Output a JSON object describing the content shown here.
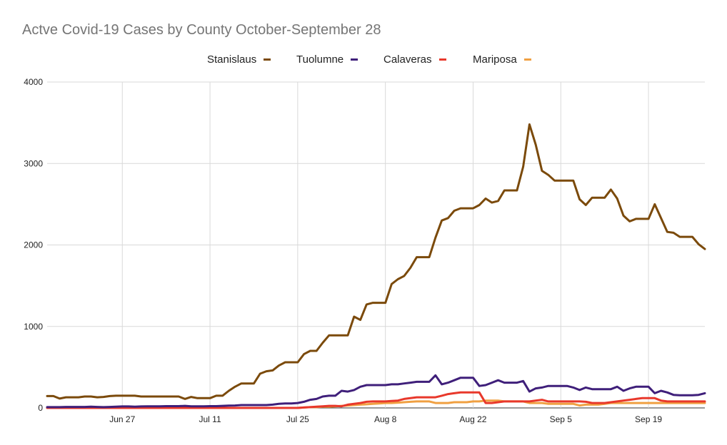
{
  "chart_data": {
    "type": "line",
    "title": "Actve Covid-19 Cases by County October-September 28",
    "xlabel": "",
    "ylabel": "",
    "ylim": [
      0,
      4000
    ],
    "y_ticks": [
      "0",
      "1000",
      "2000",
      "3000",
      "4000"
    ],
    "x_tick_labels": [
      "Jun 27",
      "Jul 11",
      "Jul 25",
      "Aug 8",
      "Aug 22",
      "Sep 5",
      "Sep 19"
    ],
    "x_tick_index": [
      12,
      26,
      40,
      54,
      68,
      82,
      96
    ],
    "x": [
      "Jun 15",
      "Jun 16",
      "Jun 17",
      "Jun 18",
      "Jun 19",
      "Jun 20",
      "Jun 21",
      "Jun 22",
      "Jun 23",
      "Jun 24",
      "Jun 25",
      "Jun 26",
      "Jun 27",
      "Jun 28",
      "Jun 29",
      "Jun 30",
      "Jul 1",
      "Jul 2",
      "Jul 3",
      "Jul 4",
      "Jul 5",
      "Jul 6",
      "Jul 7",
      "Jul 8",
      "Jul 9",
      "Jul 10",
      "Jul 11",
      "Jul 12",
      "Jul 13",
      "Jul 14",
      "Jul 15",
      "Jul 16",
      "Jul 17",
      "Jul 18",
      "Jul 19",
      "Jul 20",
      "Jul 21",
      "Jul 22",
      "Jul 23",
      "Jul 24",
      "Jul 25",
      "Jul 26",
      "Jul 27",
      "Jul 28",
      "Jul 29",
      "Jul 30",
      "Jul 31",
      "Aug 1",
      "Aug 2",
      "Aug 3",
      "Aug 4",
      "Aug 5",
      "Aug 6",
      "Aug 7",
      "Aug 8",
      "Aug 9",
      "Aug 10",
      "Aug 11",
      "Aug 12",
      "Aug 13",
      "Aug 14",
      "Aug 15",
      "Aug 16",
      "Aug 17",
      "Aug 18",
      "Aug 19",
      "Aug 20",
      "Aug 21",
      "Aug 22",
      "Aug 23",
      "Aug 24",
      "Aug 25",
      "Aug 26",
      "Aug 27",
      "Aug 28",
      "Aug 29",
      "Aug 30",
      "Aug 31",
      "Sep 1",
      "Sep 2",
      "Sep 3",
      "Sep 4",
      "Sep 5",
      "Sep 6",
      "Sep 7",
      "Sep 8",
      "Sep 9",
      "Sep 10",
      "Sep 11",
      "Sep 12",
      "Sep 13",
      "Sep 14",
      "Sep 15",
      "Sep 16",
      "Sep 17",
      "Sep 18",
      "Sep 19",
      "Sep 20",
      "Sep 21",
      "Sep 22",
      "Sep 23",
      "Sep 24",
      "Sep 25",
      "Sep 26",
      "Sep 27",
      "Sep 28"
    ],
    "legend_position": "top",
    "grid": true,
    "series": [
      {
        "name": "Stanislaus",
        "color": "#7b4a0b",
        "values": [
          145,
          145,
          115,
          130,
          130,
          130,
          140,
          140,
          130,
          135,
          145,
          150,
          150,
          150,
          150,
          140,
          140,
          140,
          140,
          140,
          140,
          140,
          110,
          135,
          120,
          120,
          120,
          150,
          150,
          210,
          260,
          300,
          300,
          300,
          420,
          450,
          460,
          520,
          560,
          560,
          560,
          660,
          700,
          700,
          800,
          890,
          890,
          890,
          890,
          1120,
          1080,
          1270,
          1290,
          1290,
          1290,
          1520,
          1580,
          1620,
          1720,
          1850,
          1850,
          1850,
          2090,
          2300,
          2330,
          2420,
          2450,
          2450,
          2450,
          2490,
          2570,
          2520,
          2540,
          2670,
          2670,
          2670,
          2960,
          3480,
          3230,
          2910,
          2860,
          2790,
          2790,
          2790,
          2790,
          2560,
          2490,
          2580,
          2580,
          2580,
          2680,
          2570,
          2360,
          2290,
          2320,
          2320,
          2320,
          2500,
          2330,
          2160,
          2150,
          2100,
          2100,
          2100,
          2010,
          1950
        ]
      },
      {
        "name": "Tuolumne",
        "color": "#3f1f7a",
        "values": [
          10,
          10,
          10,
          12,
          12,
          12,
          12,
          15,
          12,
          10,
          12,
          15,
          18,
          18,
          15,
          18,
          20,
          20,
          20,
          22,
          22,
          22,
          25,
          20,
          20,
          20,
          22,
          22,
          25,
          28,
          30,
          35,
          35,
          35,
          35,
          35,
          40,
          50,
          55,
          55,
          60,
          75,
          100,
          110,
          140,
          150,
          150,
          210,
          200,
          220,
          260,
          280,
          280,
          280,
          280,
          290,
          290,
          300,
          310,
          320,
          320,
          320,
          400,
          290,
          310,
          340,
          370,
          370,
          370,
          270,
          280,
          310,
          340,
          310,
          310,
          310,
          330,
          200,
          240,
          250,
          270,
          270,
          270,
          270,
          250,
          220,
          250,
          230,
          230,
          230,
          230,
          260,
          210,
          240,
          260,
          260,
          260,
          180,
          210,
          190,
          160,
          155,
          155,
          155,
          160,
          180
        ]
      },
      {
        "name": "Calaveras",
        "color": "#e8382b",
        "values": [
          0,
          0,
          0,
          0,
          0,
          0,
          0,
          0,
          0,
          0,
          0,
          0,
          0,
          0,
          0,
          0,
          0,
          0,
          0,
          0,
          0,
          0,
          0,
          0,
          0,
          0,
          0,
          0,
          0,
          0,
          0,
          0,
          0,
          0,
          0,
          0,
          0,
          0,
          0,
          0,
          0,
          5,
          10,
          15,
          20,
          25,
          25,
          20,
          40,
          50,
          60,
          75,
          80,
          80,
          80,
          85,
          90,
          110,
          120,
          130,
          130,
          130,
          130,
          150,
          170,
          180,
          190,
          190,
          190,
          190,
          60,
          60,
          70,
          80,
          80,
          80,
          80,
          80,
          90,
          100,
          80,
          80,
          80,
          80,
          80,
          80,
          75,
          60,
          60,
          60,
          70,
          80,
          90,
          100,
          110,
          120,
          120,
          120,
          90,
          80,
          80,
          80,
          80,
          80,
          80,
          80
        ]
      },
      {
        "name": "Mariposa",
        "color": "#f0a042",
        "values": [
          0,
          0,
          0,
          0,
          0,
          0,
          0,
          0,
          0,
          0,
          0,
          0,
          0,
          0,
          0,
          0,
          0,
          0,
          0,
          0,
          0,
          0,
          0,
          0,
          0,
          0,
          0,
          0,
          0,
          0,
          0,
          0,
          0,
          0,
          0,
          0,
          0,
          0,
          0,
          0,
          0,
          5,
          10,
          10,
          15,
          15,
          20,
          25,
          30,
          35,
          40,
          45,
          50,
          55,
          60,
          60,
          65,
          70,
          75,
          80,
          80,
          80,
          60,
          60,
          60,
          70,
          70,
          70,
          80,
          80,
          90,
          90,
          90,
          80,
          80,
          80,
          80,
          60,
          60,
          60,
          50,
          50,
          50,
          50,
          50,
          30,
          40,
          40,
          40,
          50,
          60,
          60,
          60,
          60,
          60,
          60,
          60,
          60,
          60,
          60,
          60,
          60,
          60,
          60,
          60,
          60
        ]
      }
    ]
  }
}
